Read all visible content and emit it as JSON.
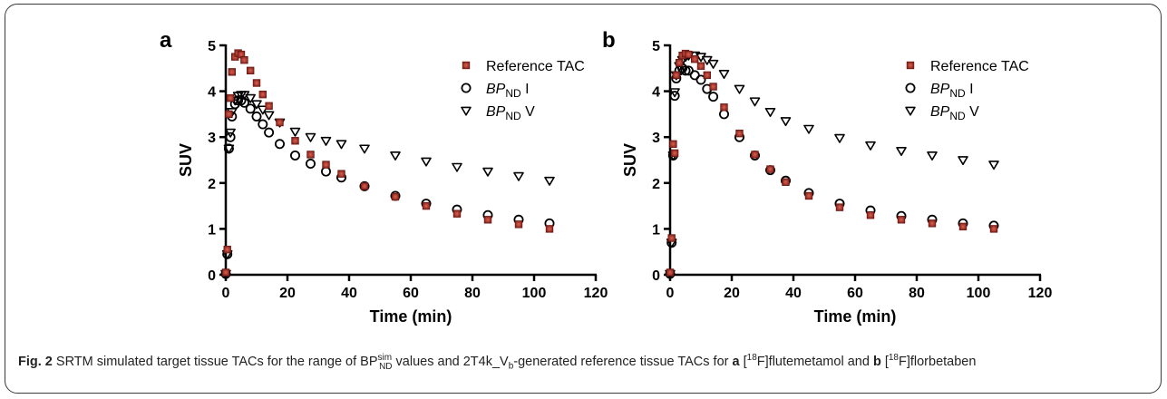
{
  "chart_data": [
    {
      "type": "scatter",
      "panel_label": "a",
      "xlabel": "Time (min)",
      "ylabel": "SUV",
      "xlim": [
        0,
        120
      ],
      "ylim": [
        0,
        5
      ],
      "xticks": [
        0,
        20,
        40,
        60,
        80,
        100,
        120
      ],
      "yticks": [
        0,
        1,
        2,
        3,
        4,
        5
      ],
      "grid": false,
      "legend_position": "top-right",
      "series": [
        {
          "name": "Reference TAC",
          "marker": "square",
          "color": "#8b2a22",
          "x": [
            0,
            0.5,
            1,
            1.5,
            2,
            3,
            4,
            5,
            6,
            8,
            10,
            12,
            14,
            17.5,
            22.5,
            27.5,
            32.5,
            37.5,
            45,
            55,
            65,
            75,
            85,
            95,
            105
          ],
          "y": [
            0.05,
            0.55,
            3.5,
            3.85,
            4.42,
            4.75,
            4.83,
            4.8,
            4.68,
            4.45,
            4.18,
            3.93,
            3.68,
            3.32,
            2.92,
            2.62,
            2.4,
            2.2,
            1.93,
            1.7,
            1.5,
            1.33,
            1.2,
            1.1,
            1.0
          ]
        },
        {
          "name": "BP_ND I",
          "marker": "circle",
          "color": "#000000",
          "x": [
            0,
            0.5,
            1,
            1.5,
            2,
            3,
            4,
            5,
            6,
            8,
            10,
            12,
            14,
            17.5,
            22.5,
            27.5,
            32.5,
            37.5,
            45,
            55,
            65,
            75,
            85,
            95,
            105
          ],
          "y": [
            0.02,
            0.45,
            2.75,
            3.0,
            3.45,
            3.72,
            3.8,
            3.8,
            3.75,
            3.62,
            3.45,
            3.28,
            3.1,
            2.85,
            2.6,
            2.42,
            2.25,
            2.12,
            1.93,
            1.72,
            1.55,
            1.42,
            1.3,
            1.2,
            1.12
          ]
        },
        {
          "name": "BP_ND V",
          "marker": "triangle-down",
          "color": "#000000",
          "x": [
            0,
            0.5,
            1,
            1.5,
            2,
            3,
            4,
            5,
            6,
            8,
            10,
            12,
            14,
            17.5,
            22.5,
            27.5,
            32.5,
            37.5,
            45,
            55,
            65,
            75,
            85,
            95,
            105
          ],
          "y": [
            0.02,
            0.45,
            2.75,
            3.1,
            3.55,
            3.8,
            3.9,
            3.92,
            3.92,
            3.85,
            3.72,
            3.6,
            3.48,
            3.32,
            3.12,
            3.0,
            2.92,
            2.85,
            2.75,
            2.6,
            2.47,
            2.35,
            2.25,
            2.15,
            2.05
          ]
        }
      ]
    },
    {
      "type": "scatter",
      "panel_label": "b",
      "xlabel": "Time (min)",
      "ylabel": "SUV",
      "xlim": [
        0,
        120
      ],
      "ylim": [
        0,
        5
      ],
      "xticks": [
        0,
        20,
        40,
        60,
        80,
        100,
        120
      ],
      "yticks": [
        0,
        1,
        2,
        3,
        4,
        5
      ],
      "grid": false,
      "legend_position": "top-right",
      "series": [
        {
          "name": "Reference TAC",
          "marker": "square",
          "color": "#8b2a22",
          "x": [
            0,
            0.5,
            1,
            1.5,
            2,
            3,
            4,
            5,
            6,
            8,
            10,
            12,
            14,
            17.5,
            22.5,
            27.5,
            32.5,
            37.5,
            45,
            55,
            65,
            75,
            85,
            95,
            105
          ],
          "y": [
            0.05,
            0.8,
            2.85,
            2.65,
            4.35,
            4.62,
            4.78,
            4.82,
            4.8,
            4.7,
            4.55,
            4.35,
            4.1,
            3.65,
            3.08,
            2.62,
            2.3,
            2.02,
            1.72,
            1.47,
            1.3,
            1.2,
            1.12,
            1.05,
            1.0
          ]
        },
        {
          "name": "BP_ND I",
          "marker": "circle",
          "color": "#000000",
          "x": [
            0,
            0.5,
            1,
            1.5,
            2,
            3,
            4,
            5,
            6,
            8,
            10,
            12,
            14,
            17.5,
            22.5,
            27.5,
            32.5,
            37.5,
            45,
            55,
            65,
            75,
            85,
            95,
            105
          ],
          "y": [
            0.02,
            0.7,
            2.6,
            3.9,
            4.28,
            4.45,
            4.5,
            4.45,
            4.45,
            4.35,
            4.25,
            4.05,
            3.88,
            3.5,
            3.0,
            2.6,
            2.28,
            2.05,
            1.78,
            1.55,
            1.4,
            1.28,
            1.2,
            1.12,
            1.07
          ]
        },
        {
          "name": "BP_ND V",
          "marker": "triangle-down",
          "color": "#000000",
          "x": [
            0,
            0.5,
            1,
            1.5,
            2,
            3,
            4,
            5,
            6,
            8,
            10,
            12,
            14,
            17.5,
            22.5,
            27.5,
            32.5,
            37.5,
            45,
            55,
            65,
            75,
            85,
            95,
            105
          ],
          "y": [
            0.02,
            0.7,
            2.6,
            3.98,
            4.35,
            4.55,
            4.68,
            4.75,
            4.78,
            4.78,
            4.75,
            4.68,
            4.6,
            4.38,
            4.05,
            3.78,
            3.55,
            3.35,
            3.18,
            2.98,
            2.82,
            2.7,
            2.6,
            2.5,
            2.4
          ]
        }
      ]
    }
  ],
  "legend": [
    {
      "pre": "Reference TAC",
      "italic": "",
      "sub": "",
      "post": ""
    },
    {
      "pre": "",
      "italic": "BP",
      "sub": "ND",
      "post": " I"
    },
    {
      "pre": "",
      "italic": "BP",
      "sub": "ND",
      "post": " V"
    }
  ],
  "caption": {
    "fig_label": "Fig. 2",
    "t1": " SRTM simulated target tissue TACs for the range of BP",
    "bp_sup": "sim",
    "bp_sub": "ND",
    "t2": " values and 2T4k_V",
    "vb_sub": "b",
    "t3": "-generated reference tissue TACs for ",
    "a_label": "a",
    "t4": " [",
    "f18_sup_1": "18",
    "t5": "F]flutemetamol and ",
    "b_label": "b",
    "t6": " [",
    "f18_sup_2": "18",
    "t7": "F]florbetaben"
  }
}
